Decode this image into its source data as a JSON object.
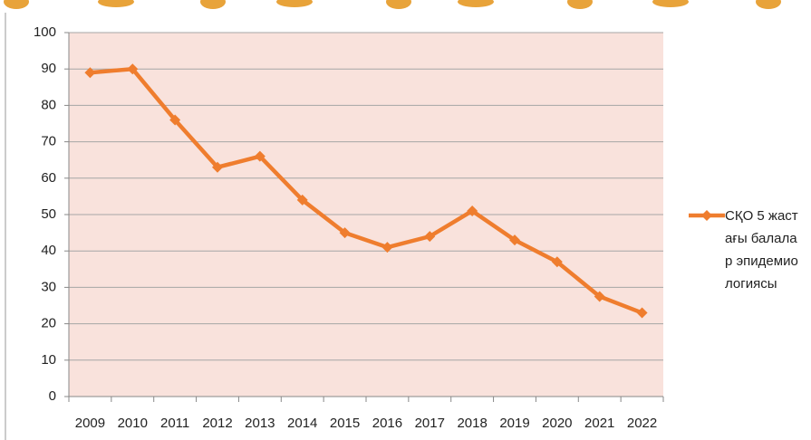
{
  "chart_data": {
    "type": "line",
    "categories": [
      "2009",
      "2010",
      "2011",
      "2012",
      "2013",
      "2014",
      "2015",
      "2016",
      "2017",
      "2018",
      "2019",
      "2020",
      "2021",
      "2022"
    ],
    "series": [
      {
        "name": "СҚО 5 жастағы балалар эпидемиологиясы",
        "color": "#ef7d2e",
        "values": [
          89,
          90,
          76,
          63,
          66,
          54,
          45,
          41,
          44,
          51,
          43,
          37,
          27.5,
          23
        ]
      }
    ],
    "ylim": [
      0,
      100
    ],
    "yticks": [
      0,
      10,
      20,
      30,
      40,
      50,
      60,
      70,
      80,
      90,
      100
    ],
    "grid": true,
    "legend": "right"
  }
}
